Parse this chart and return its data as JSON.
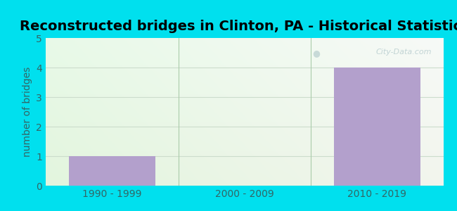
{
  "title": "Reconstructed bridges in Clinton, PA - Historical Statistics",
  "categories": [
    "1990 - 1999",
    "2000 - 2009",
    "2010 - 2019"
  ],
  "values": [
    1,
    0,
    4
  ],
  "bar_color": "#b3a0cc",
  "ylabel": "number of bridges",
  "ylim": [
    0,
    5
  ],
  "yticks": [
    0,
    1,
    2,
    3,
    4,
    5
  ],
  "background_outer": "#00e0ee",
  "title_fontsize": 14,
  "axis_label_color": "#336666",
  "tick_color": "#336666",
  "tick_fontsize": 10,
  "ylabel_fontsize": 10,
  "watermark": "City-Data.com",
  "bar_width": 0.65,
  "grid_color": "#ccddcc",
  "divider_color": "#aaccaa"
}
